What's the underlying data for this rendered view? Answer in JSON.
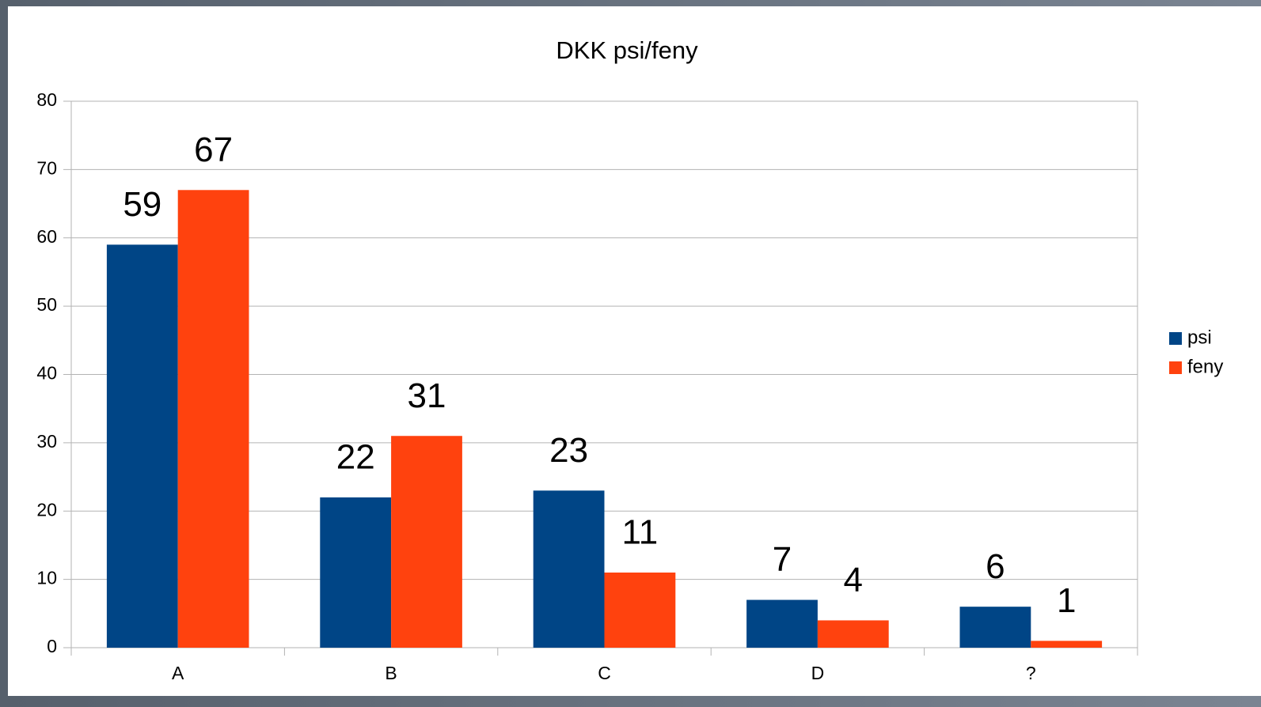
{
  "chart_data": {
    "type": "bar",
    "title": "DKK psi/feny",
    "categories": [
      "A",
      "B",
      "C",
      "D",
      "?"
    ],
    "series": [
      {
        "name": "psi",
        "color": "#004586",
        "values": [
          59,
          22,
          23,
          7,
          6
        ]
      },
      {
        "name": "feny",
        "color": "#ff420e",
        "values": [
          67,
          31,
          11,
          4,
          1
        ]
      }
    ],
    "ylim": [
      0,
      80
    ],
    "yticks": [
      0,
      10,
      20,
      30,
      40,
      50,
      60,
      70,
      80
    ],
    "grid": true,
    "legend": "right",
    "data_labels": true
  }
}
